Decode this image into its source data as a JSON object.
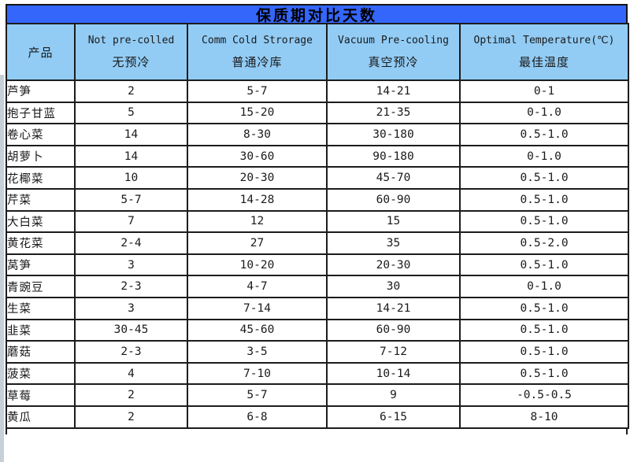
{
  "title": "保质期对比天数",
  "colors": {
    "title_bar_bg": "#3566fb",
    "header_bg": "#92ccf5",
    "border": "#1c1c1c",
    "title_text": "#000000",
    "cell_text": "#1a1a1a"
  },
  "chart_data": {
    "type": "table",
    "title": "保质期对比天数",
    "columns": [
      {
        "en": "",
        "zh": "产品"
      },
      {
        "en": "Not pre-colled",
        "zh": "无预冷"
      },
      {
        "en": "Comm Cold Strorage",
        "zh": "普通冷库"
      },
      {
        "en": "Vacuum Pre-cooling",
        "zh": "真空预冷"
      },
      {
        "en": "Optimal Temperature(℃)",
        "zh": "最佳温度"
      }
    ],
    "rows": [
      [
        "芦笋",
        "2",
        "5-7",
        "14-21",
        "0-1"
      ],
      [
        "抱子甘蓝",
        "5",
        "15-20",
        "21-35",
        "0-1.0"
      ],
      [
        "卷心菜",
        "14",
        "8-30",
        "30-180",
        "0.5-1.0"
      ],
      [
        "胡萝卜",
        "14",
        "30-60",
        "90-180",
        "0-1.0"
      ],
      [
        "花椰菜",
        "10",
        "20-30",
        "45-70",
        "0.5-1.0"
      ],
      [
        "芹菜",
        "5-7",
        "14-28",
        "60-90",
        "0.5-1.0"
      ],
      [
        "大白菜",
        "7",
        "12",
        "15",
        "0.5-1.0"
      ],
      [
        "黄花菜",
        "2-4",
        "27",
        "35",
        "0.5-2.0"
      ],
      [
        "莴笋",
        "3",
        "10-20",
        "20-30",
        "0.5-1.0"
      ],
      [
        "青豌豆",
        "2-3",
        "4-7",
        "30",
        "0-1.0"
      ],
      [
        "生菜",
        "3",
        "7-14",
        "14-21",
        "0.5-1.0"
      ],
      [
        "韭菜",
        "30-45",
        "45-60",
        "60-90",
        "0.5-1.0"
      ],
      [
        "蘑菇",
        "2-3",
        "3-5",
        "7-12",
        "0.5-1.0"
      ],
      [
        "菠菜",
        "4",
        "7-10",
        "10-14",
        "0.5-1.0"
      ],
      [
        "草莓",
        "2",
        "5-7",
        "9",
        "-0.5-0.5"
      ],
      [
        "黄瓜",
        "2",
        "6-8",
        "6-15",
        "8-10"
      ]
    ]
  }
}
